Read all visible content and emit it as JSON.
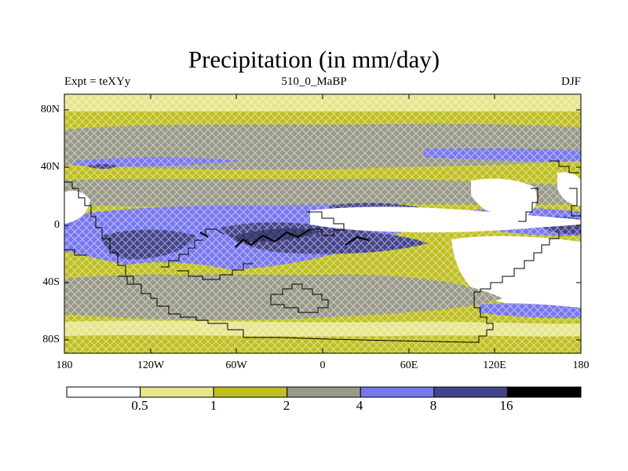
{
  "title": "Precipitation (in mm/day)",
  "subtitle_left": "Expt = teXYy",
  "subtitle_center": "510_0_MaBP",
  "subtitle_right": "DJF",
  "lat_labels": [
    "80N",
    "40N",
    "0",
    "40S",
    "80S"
  ],
  "lon_labels": [
    "180",
    "120W",
    "60W",
    "0",
    "60E",
    "120E",
    "180"
  ],
  "colorbar": {
    "colors": [
      "#ffffff",
      "#e5e58a",
      "#bfbf22",
      "#999988",
      "#7777ee",
      "#44448c",
      "#000000"
    ],
    "labels": [
      "0.5",
      "1",
      "2",
      "4",
      "8",
      "16"
    ]
  }
}
